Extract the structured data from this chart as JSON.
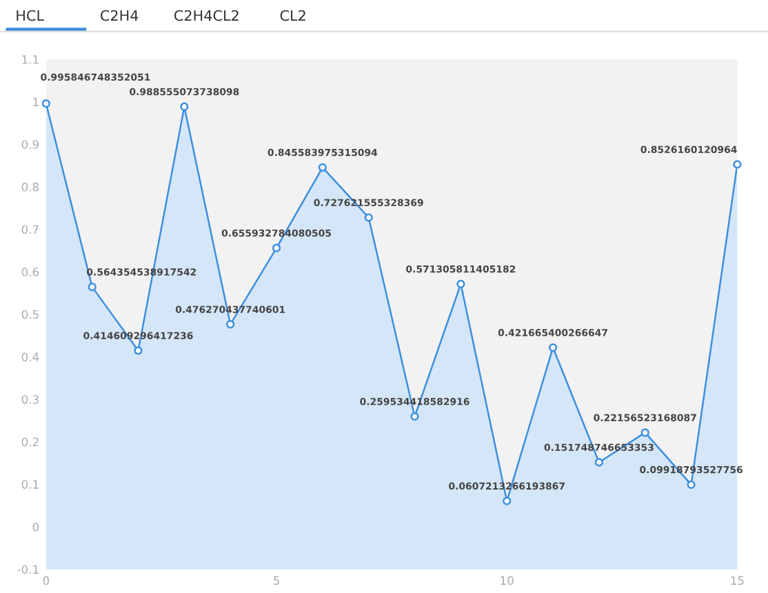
{
  "chart_data": {
    "type": "area",
    "x": [
      0,
      1,
      2,
      3,
      4,
      5,
      6,
      7,
      8,
      9,
      10,
      11,
      12,
      13,
      14,
      15
    ],
    "series": [
      {
        "name": "HCL",
        "color": "#3d8fde",
        "values": [
          0.995846748352051,
          0.564354538917542,
          0.414609296417236,
          0.988555073738098,
          0.476270437740601,
          0.655932784080505,
          0.845583975315094,
          0.727621555328369,
          0.259534418582916,
          0.571305811405182,
          0.0607213266193867,
          0.421665400266647,
          0.151748746653353,
          0.22156523168087,
          0.09918793527756,
          0.8526160120964
        ]
      }
    ],
    "annotations": [
      "C2H4",
      "C2H4CL2",
      "CL2"
    ],
    "xlim": [
      0,
      15
    ],
    "xticks": [
      0,
      5,
      10,
      15
    ],
    "ylim": [
      -0.1,
      1.1
    ],
    "yticks": [
      -0.1,
      0,
      0.1,
      0.2,
      0.3,
      0.4,
      0.5,
      0.6,
      0.7,
      0.8,
      0.9,
      1,
      1.1
    ],
    "marker": "circle",
    "data_labels": true,
    "grid": false,
    "legend": "top left"
  }
}
